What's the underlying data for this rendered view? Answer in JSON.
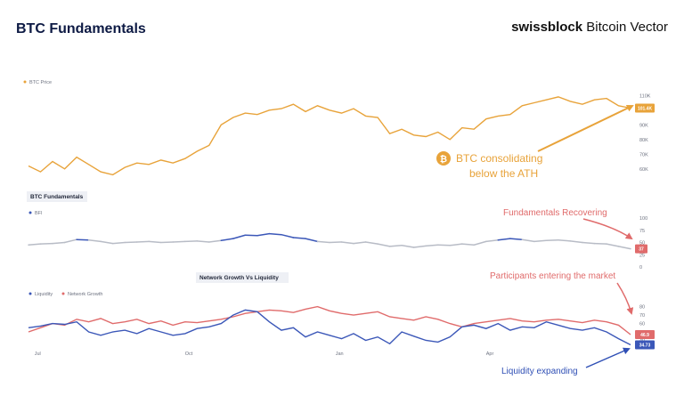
{
  "header": {
    "title": "BTC Fundamentals",
    "brand_bold": "swissblock",
    "brand_rest": " Bitcoin Vector"
  },
  "colors": {
    "price": "#e8a33a",
    "bfi_low": "#b8bcc6",
    "bfi_high": "#3b57b8",
    "liquidity": "#3b57b8",
    "network": "#e06b6b",
    "annotation_orange": "#e8a33a",
    "annotation_red": "#e06b6b",
    "annotation_blue": "#2f4fb5"
  },
  "annotations": {
    "btc_line1": "BTC consolidating",
    "btc_line2": "below the ATH",
    "btc_icon": "bitcoin-icon",
    "fundamentals": "Fundamentals Recovering",
    "participants": "Participants entering the market",
    "liquidity": "Liquidity expanding"
  },
  "chart_data": [
    {
      "type": "line",
      "title": "",
      "legend": [
        "BTC Price"
      ],
      "legend_placement": "top-left",
      "y_ticks": [
        "60K",
        "70K",
        "80K",
        "90K",
        "100K",
        "110K"
      ],
      "ylim": [
        55000,
        112000
      ],
      "last_value_label": "101.4K",
      "series": [
        {
          "name": "BTC Price",
          "values": [
            62000,
            58000,
            65000,
            60000,
            68000,
            63000,
            58000,
            56000,
            61000,
            64000,
            63000,
            66000,
            64000,
            67000,
            72000,
            76000,
            90000,
            95000,
            98000,
            97000,
            100000,
            101000,
            104000,
            99000,
            103000,
            100000,
            98000,
            101000,
            96000,
            95000,
            84000,
            87000,
            83000,
            82000,
            85000,
            80000,
            88000,
            87000,
            94000,
            96000,
            97000,
            103000,
            105000,
            107000,
            109000,
            106000,
            104000,
            107000,
            108000,
            103000,
            101400
          ]
        }
      ]
    },
    {
      "type": "line",
      "title": "BTC Fundamentals",
      "legend": [
        "BFI"
      ],
      "legend_placement": "top-left",
      "y_ticks": [
        "0",
        "25",
        "50",
        "75",
        "100"
      ],
      "ylim": [
        0,
        100
      ],
      "last_value_label": "37",
      "series": [
        {
          "name": "BFI",
          "values": [
            45,
            47,
            48,
            50,
            56,
            55,
            52,
            48,
            50,
            51,
            52,
            50,
            51,
            52,
            53,
            51,
            54,
            58,
            65,
            64,
            68,
            66,
            60,
            58,
            52,
            50,
            51,
            48,
            51,
            47,
            42,
            44,
            40,
            43,
            45,
            44,
            47,
            45,
            52,
            55,
            58,
            56,
            52,
            54,
            55,
            53,
            50,
            48,
            47,
            42,
            37
          ]
        }
      ]
    },
    {
      "type": "line",
      "title": "Network Growth Vs Liquidity",
      "legend": [
        "Liquidity",
        "Network Growth"
      ],
      "legend_placement": "top-left",
      "x_ticks": [
        "Jul",
        "Oct",
        "Jan",
        "Apr"
      ],
      "y_ticks": [
        "40",
        "50",
        "60",
        "70",
        "80"
      ],
      "ylim": [
        30,
        88
      ],
      "last_value_labels": [
        "46.9",
        "34.73"
      ],
      "series": [
        {
          "name": "Network Growth",
          "values": [
            50,
            55,
            60,
            58,
            65,
            62,
            66,
            60,
            62,
            65,
            60,
            63,
            58,
            62,
            61,
            63,
            65,
            68,
            72,
            74,
            76,
            75,
            73,
            77,
            80,
            75,
            72,
            70,
            72,
            74,
            68,
            66,
            64,
            68,
            65,
            60,
            56,
            60,
            62,
            64,
            66,
            63,
            62,
            64,
            65,
            63,
            61,
            64,
            62,
            58,
            46.9
          ]
        },
        {
          "name": "Liquidity",
          "values": [
            55,
            57,
            60,
            59,
            62,
            50,
            46,
            50,
            52,
            48,
            54,
            50,
            46,
            48,
            54,
            56,
            60,
            70,
            76,
            74,
            62,
            52,
            55,
            44,
            50,
            46,
            42,
            48,
            40,
            44,
            36,
            50,
            45,
            40,
            38,
            44,
            56,
            58,
            54,
            60,
            52,
            56,
            55,
            62,
            58,
            54,
            52,
            55,
            50,
            42,
            34.73
          ]
        }
      ]
    }
  ]
}
